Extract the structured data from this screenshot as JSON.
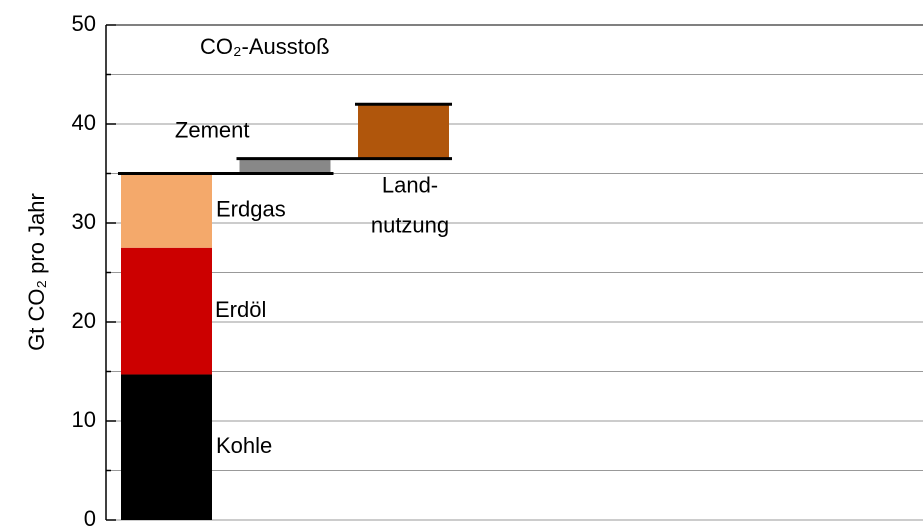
{
  "chart_data": {
    "type": "waterfall",
    "title": "CO₂-Ausstoß",
    "ylabel": "Gt CO₂ pro Jahr",
    "ylim": [
      0,
      50
    ],
    "yticks": [
      0,
      10,
      20,
      30,
      40,
      50
    ],
    "minor_grid": [
      5,
      15,
      25,
      35,
      45
    ],
    "grid": true,
    "series": [
      {
        "name": "Kohle",
        "color": "#000000",
        "column": 0,
        "value": 14.7
      },
      {
        "name": "Erdöl",
        "color": "#cc0000",
        "column": 0,
        "value": 12.8
      },
      {
        "name": "Erdgas",
        "color": "#f4a96b",
        "column": 0,
        "value": 7.5
      },
      {
        "name": "Zement",
        "color": "#888888",
        "column": 1,
        "value": 1.5
      },
      {
        "name": [
          "Land-",
          "nutzung"
        ],
        "color": "#b0560c",
        "column": 2,
        "value": 5.5
      }
    ]
  }
}
